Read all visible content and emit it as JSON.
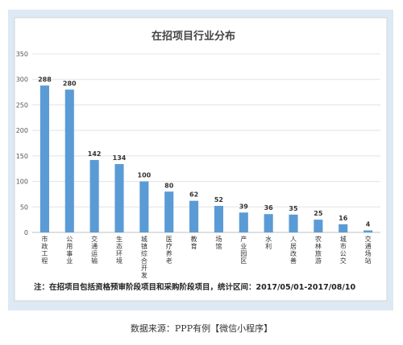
{
  "chart_data": {
    "type": "bar",
    "title": "在招项目行业分布",
    "categories": [
      "市政工程",
      "公用事业",
      "交通运输",
      "生态环境",
      "城镇综合开发",
      "医疗养老",
      "教育",
      "场馆",
      "产业园区",
      "水利",
      "人居改善",
      "农林旅游",
      "城市公交",
      "交通场站"
    ],
    "values": [
      288,
      280,
      142,
      134,
      100,
      80,
      62,
      52,
      39,
      36,
      35,
      25,
      16,
      4
    ],
    "yticks": [
      0,
      50,
      100,
      150,
      200,
      250,
      300,
      350
    ],
    "ylim": [
      0,
      350
    ],
    "grid": true,
    "bar_color": "#5b9bd5",
    "note": "注：在招项目包括资格预审阶段项目和采购阶段项目，统计区间：2017/05/01-2017/08/10"
  },
  "source": "数据来源：PPP有例【微信小程序】"
}
